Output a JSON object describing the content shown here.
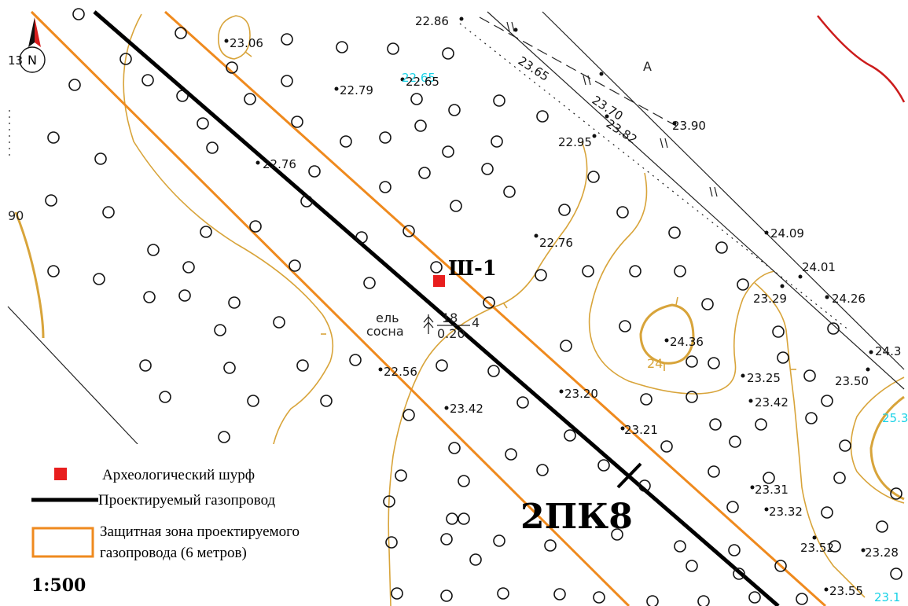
{
  "map": {
    "colors": {
      "pipeline": "#000000",
      "zone": "#ef8a1e",
      "contour": "#d8a43a",
      "shurf": "#e81e1e",
      "boundary": "#cc1c1c",
      "cyan": "#19d2e6"
    },
    "labels": {
      "shurf": "Ш-1",
      "picket": "2ПК8",
      "tree_top": "ель",
      "tree_bottom": "сосна",
      "tree_num": "18",
      "tree_den": "0.20",
      "tree_count": "4",
      "letter_a": "А",
      "contour_24": "24",
      "north": "N",
      "north_num": "13",
      "edge_90": "90"
    },
    "elevations": {
      "e1": "22.86",
      "e2": "23.06",
      "e3": "23.65",
      "e4": "22.79",
      "e5": "22.65",
      "e6": "23.70",
      "e7": "23.82",
      "e8": "23.90",
      "e9": "22.95",
      "e10": "22.76",
      "e11": "24.09",
      "e12": "22.76",
      "e13": "24.01",
      "e14": "23.29",
      "e15": "24.26",
      "e16": "24.36",
      "e17": "24.3",
      "e18": "22.56",
      "e19": "23.25",
      "e20": "23.50",
      "e21": "23.20",
      "e22": "23.42",
      "e23": "23.42",
      "e24": "25.3",
      "e25": "23.21",
      "e26": "23.31",
      "e27": "23.32",
      "e28": "23.52",
      "e29": "23.28",
      "e30": "23.55",
      "e31": "23.1"
    },
    "scale": "1:500"
  },
  "legend": {
    "shurf_label": "Археологический шурф",
    "pipeline_label": "Проектируемый газопровод",
    "zone_label_1": "Защитная зона проектируемого",
    "zone_label_2": "газопровода (6 метров)"
  }
}
